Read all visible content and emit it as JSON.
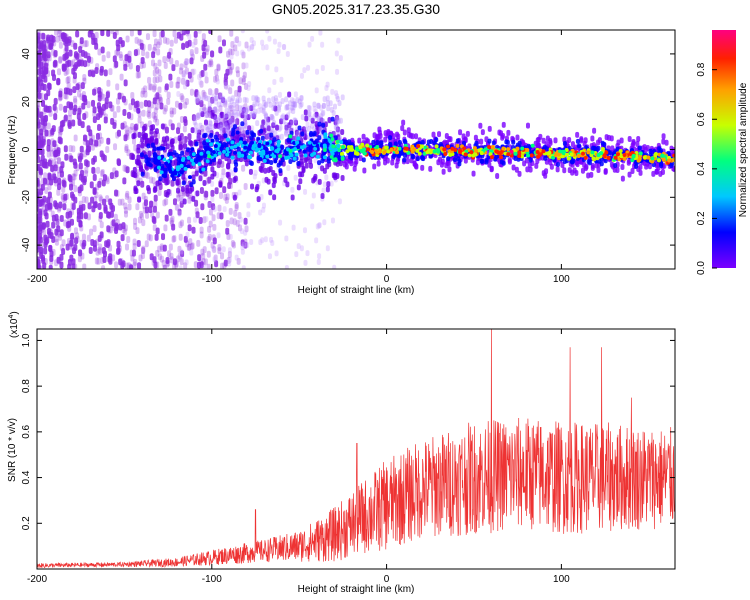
{
  "title": "GN05.2025.317.23.35.G30",
  "chart_data": [
    {
      "type": "heatmap",
      "title": "GN05.2025.317.23.35.G30",
      "xlabel": "Height of straight line (km)",
      "ylabel": "Frequency (Hz)",
      "xlim": [
        -200,
        165
      ],
      "ylim": [
        -50,
        50
      ],
      "xticks": [
        "-200",
        "-100",
        "0",
        "100"
      ],
      "xtick_values": [
        -200,
        -100,
        0,
        100
      ],
      "yticks": [
        "40",
        "20",
        "0",
        "-20",
        "-40"
      ],
      "ytick_values": [
        40,
        20,
        0,
        -20,
        -40
      ],
      "colorbar": {
        "label": "Normalized spectral amplitude",
        "range": [
          0,
          0.96
        ],
        "ticks": [
          "0.0",
          "0.2",
          "0.4",
          "0.6",
          "0.8"
        ],
        "tick_values": [
          0.0,
          0.2,
          0.4,
          0.6,
          0.8
        ],
        "colors": [
          "#7b00ff",
          "#0000ff",
          "#00c8ff",
          "#00ff80",
          "#c8ff00",
          "#ffa000",
          "#ff2000",
          "#ff0080"
        ]
      },
      "ridge": {
        "x": [
          -140,
          -120,
          -110,
          -100,
          -80,
          -60,
          -40,
          -25,
          0,
          25,
          50,
          80,
          100,
          130,
          165
        ],
        "center_hz": [
          -2,
          -8,
          -5,
          0,
          1,
          -1,
          2,
          0,
          0,
          0,
          -1,
          -1,
          -2,
          -2,
          -4
        ],
        "peak_amplitude": [
          0.2,
          0.25,
          0.3,
          0.35,
          0.3,
          0.35,
          0.3,
          0.6,
          0.9,
          0.8,
          0.85,
          0.9,
          0.75,
          0.85,
          0.8
        ]
      }
    },
    {
      "type": "line",
      "xlabel": "Height of straight line (km)",
      "ylabel": "SNR (10 * v/v)",
      "y_exponent_label": "(x10",
      "y_exponent": "4",
      "xlim": [
        -200,
        165
      ],
      "ylim": [
        0,
        1.05
      ],
      "xticks": [
        "-200",
        "-100",
        "0",
        "100"
      ],
      "xtick_values": [
        -200,
        -100,
        0,
        100
      ],
      "yticks": [
        "1.0",
        "0.8",
        "0.6",
        "0.4",
        "0.2"
      ],
      "ytick_values": [
        1.0,
        0.8,
        0.6,
        0.4,
        0.2
      ],
      "color": "#ee3333",
      "envelope": {
        "x": [
          -200,
          -150,
          -120,
          -90,
          -70,
          -50,
          -30,
          -15,
          0,
          20,
          50,
          80,
          100,
          130,
          165
        ],
        "mean": [
          0.015,
          0.02,
          0.03,
          0.06,
          0.08,
          0.1,
          0.15,
          0.22,
          0.28,
          0.35,
          0.4,
          0.42,
          0.4,
          0.4,
          0.4
        ],
        "spread": [
          0.01,
          0.01,
          0.02,
          0.04,
          0.05,
          0.07,
          0.12,
          0.16,
          0.2,
          0.22,
          0.25,
          0.25,
          0.25,
          0.24,
          0.22
        ]
      },
      "peaks": [
        {
          "x": -75,
          "y": 0.26
        },
        {
          "x": -17,
          "y": 0.55
        },
        {
          "x": 60,
          "y": 1.05
        },
        {
          "x": 105,
          "y": 0.97
        },
        {
          "x": 123,
          "y": 0.97
        },
        {
          "x": 140,
          "y": 0.75
        }
      ]
    }
  ]
}
